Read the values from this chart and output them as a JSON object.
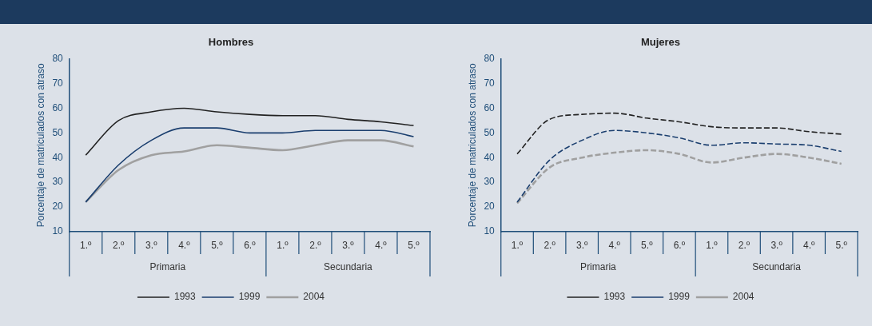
{
  "chart_data": [
    {
      "type": "line",
      "title": "Hombres",
      "ylabel": "Porcentaje de matriculados con atraso",
      "categories": [
        "1.º",
        "2.º",
        "3.º",
        "4.º",
        "5.º",
        "6.º",
        "1.º",
        "2.º",
        "3.º",
        "4.º",
        "5.º"
      ],
      "ylim": [
        10,
        80
      ],
      "yticks": [
        10,
        20,
        30,
        40,
        50,
        60,
        70,
        80
      ],
      "legend": "bottom",
      "line_style": "solid",
      "annotations": [
        "Primaria",
        "Secundaria"
      ],
      "series": [
        {
          "name": "1993",
          "color": "#222222",
          "values": [
            41,
            55,
            58.5,
            60,
            58.5,
            57.5,
            57,
            57,
            55.5,
            54.5,
            53
          ]
        },
        {
          "name": "1999",
          "color": "#1a3e6e",
          "values": [
            22,
            37,
            47,
            52,
            52,
            50,
            50,
            51,
            51,
            51,
            48.5
          ]
        },
        {
          "name": "2004",
          "color": "#a0a0a0",
          "values": [
            22,
            35,
            41,
            42.5,
            45,
            44,
            43,
            45,
            47,
            47,
            44.5
          ]
        }
      ]
    },
    {
      "type": "line",
      "title": "Mujeres",
      "ylabel": "Porcentaje de matriculados con atraso",
      "categories": [
        "1.º",
        "2.º",
        "3.º",
        "4.º",
        "5.º",
        "6.º",
        "1.º",
        "2.º",
        "3.º",
        "4.º",
        "5.º"
      ],
      "ylim": [
        10,
        80
      ],
      "yticks": [
        10,
        20,
        30,
        40,
        50,
        60,
        70,
        80
      ],
      "legend": "bottom",
      "line_style": "dashed",
      "annotations": [
        "Primaria",
        "Secundaria"
      ],
      "series": [
        {
          "name": "1993",
          "color": "#222222",
          "values": [
            41.5,
            55.5,
            57.5,
            58,
            56,
            54.5,
            52.5,
            52,
            52,
            50.5,
            49.5
          ]
        },
        {
          "name": "1999",
          "color": "#1a3e6e",
          "values": [
            22,
            39,
            47,
            51,
            50,
            48,
            45,
            46,
            45.5,
            45,
            42.5
          ]
        },
        {
          "name": "2004",
          "color": "#a0a0a0",
          "values": [
            21.5,
            36,
            40,
            42,
            43,
            41.5,
            38,
            40,
            41.5,
            40,
            37.5
          ]
        }
      ]
    }
  ]
}
